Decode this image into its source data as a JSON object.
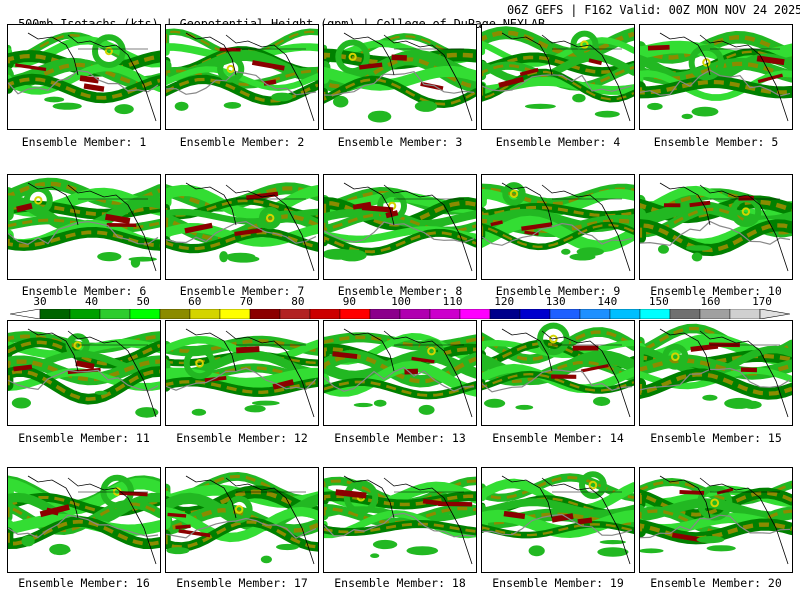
{
  "header": {
    "left": "500mb Isotachs (kts) | Geopotential Height (gpm) | College of DuPage NEXLAB",
    "right": "06Z GEFS | F162 Valid: 00Z MON NOV 24 2025"
  },
  "members": [
    {
      "label": "Ensemble Member: 1"
    },
    {
      "label": "Ensemble Member: 2"
    },
    {
      "label": "Ensemble Member: 3"
    },
    {
      "label": "Ensemble Member: 4"
    },
    {
      "label": "Ensemble Member: 5"
    },
    {
      "label": "Ensemble Member: 6"
    },
    {
      "label": "Ensemble Member: 7"
    },
    {
      "label": "Ensemble Member: 8"
    },
    {
      "label": "Ensemble Member: 9"
    },
    {
      "label": "Ensemble Member: 10"
    },
    {
      "label": "Ensemble Member: 11"
    },
    {
      "label": "Ensemble Member: 12"
    },
    {
      "label": "Ensemble Member: 13"
    },
    {
      "label": "Ensemble Member: 14"
    },
    {
      "label": "Ensemble Member: 15"
    },
    {
      "label": "Ensemble Member: 16"
    },
    {
      "label": "Ensemble Member: 17"
    },
    {
      "label": "Ensemble Member: 18"
    },
    {
      "label": "Ensemble Member: 19"
    },
    {
      "label": "Ensemble Member: 20"
    }
  ],
  "colorbar": {
    "labels": [
      "30",
      "40",
      "50",
      "60",
      "70",
      "80",
      "90",
      "100",
      "110",
      "120",
      "130",
      "140",
      "150",
      "160",
      "170"
    ],
    "colors": [
      "#006400",
      "#00a000",
      "#2ecc2e",
      "#00ff00",
      "#8b8b00",
      "#d4d400",
      "#ffff00",
      "#8b0000",
      "#b22222",
      "#cc0000",
      "#ff0000",
      "#8b008b",
      "#b000b0",
      "#cc00cc",
      "#ff00ff",
      "#00008b",
      "#0000cd",
      "#1e60ff",
      "#1e90ff",
      "#00bfff",
      "#00ffff",
      "#707070",
      "#a0a0a0",
      "#d0d0d0"
    ]
  },
  "map_colors": {
    "green_dark": "#008000",
    "green": "#22b822",
    "green_light": "#33dd33",
    "olive": "#8b8b00",
    "yellow": "#d4d400",
    "maroon": "#8b0000",
    "contour": "#888888",
    "coast": "#000000"
  }
}
